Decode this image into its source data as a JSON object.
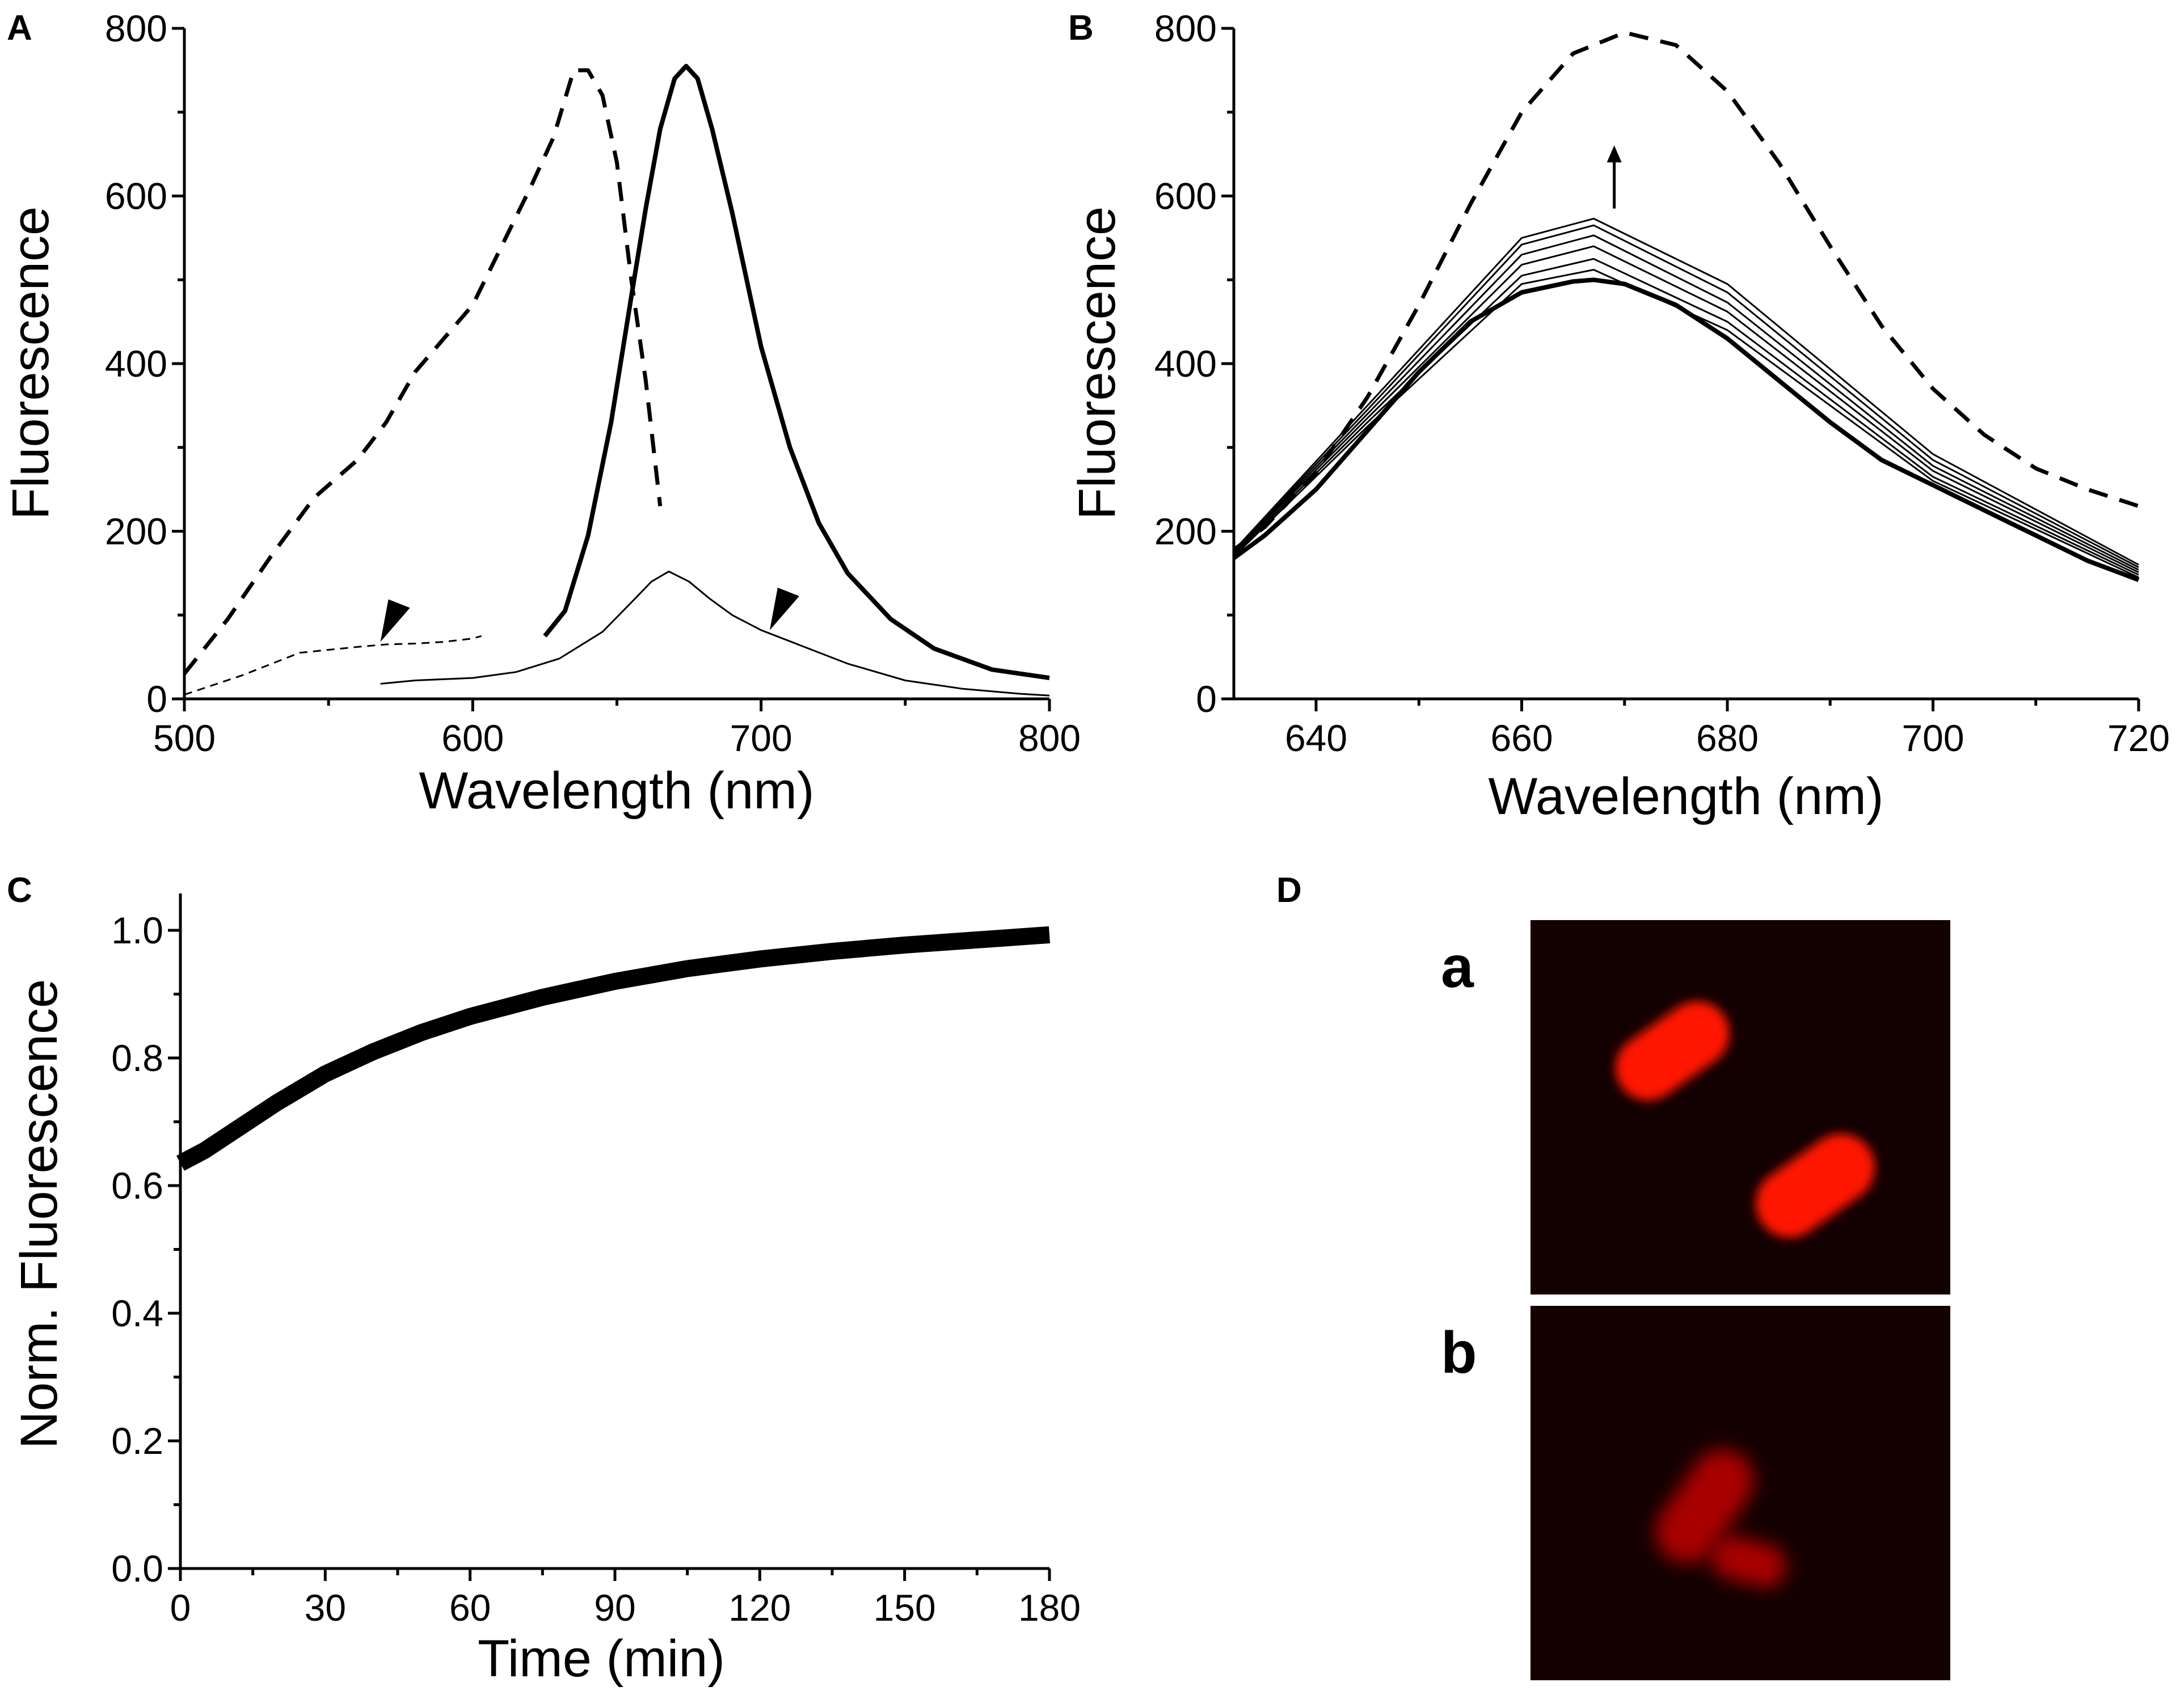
{
  "panels": {
    "A": "A",
    "B": "B",
    "C": "C",
    "D": "D"
  },
  "micrograph_labels": {
    "a": "a",
    "b": "b"
  },
  "chart_data": [
    {
      "panel": "A",
      "type": "line",
      "xlabel": "Wavelength (nm)",
      "ylabel": "Fluorescence",
      "xlim": [
        500,
        800
      ],
      "ylim": [
        0,
        800
      ],
      "x_ticks": [
        500,
        600,
        700,
        800
      ],
      "y_ticks": [
        0,
        200,
        400,
        600,
        800
      ],
      "grid": false,
      "series": [
        {
          "style": "thick dashed",
          "x": [
            500,
            515,
            530,
            545,
            560,
            570,
            580,
            590,
            600,
            610,
            620,
            628,
            635,
            640,
            645,
            650,
            655,
            660,
            665
          ],
          "y": [
            30,
            95,
            170,
            240,
            285,
            330,
            390,
            430,
            470,
            540,
            610,
            670,
            750,
            750,
            720,
            640,
            500,
            380,
            230
          ]
        },
        {
          "style": "thin dashed",
          "x": [
            500,
            520,
            540,
            560,
            570,
            580,
            590,
            600,
            603
          ],
          "y": [
            5,
            28,
            55,
            62,
            65,
            66,
            68,
            72,
            75
          ]
        },
        {
          "style": "thick solid",
          "x": [
            625,
            632,
            640,
            648,
            655,
            660,
            665,
            670,
            674,
            678,
            683,
            690,
            700,
            710,
            720,
            730,
            745,
            760,
            780,
            800
          ],
          "y": [
            75,
            105,
            195,
            330,
            480,
            585,
            680,
            740,
            755,
            740,
            680,
            580,
            420,
            300,
            210,
            150,
            95,
            60,
            35,
            25
          ]
        },
        {
          "style": "thin solid",
          "x": [
            568,
            580,
            600,
            615,
            630,
            645,
            655,
            662,
            668,
            675,
            682,
            690,
            700,
            715,
            730,
            750,
            770,
            790,
            800
          ],
          "y": [
            18,
            22,
            25,
            32,
            48,
            80,
            115,
            140,
            152,
            140,
            120,
            100,
            82,
            62,
            42,
            22,
            12,
            6,
            4
          ]
        }
      ],
      "annotations": [
        {
          "shape": "arrowhead",
          "x": 568,
          "y": 68
        },
        {
          "shape": "arrowhead",
          "x": 703,
          "y": 82
        }
      ]
    },
    {
      "panel": "B",
      "type": "line",
      "xlabel": "Wavelength (nm)",
      "ylabel": "Fluorescence",
      "xlim": [
        632,
        720
      ],
      "ylim": [
        0,
        800
      ],
      "x_ticks": [
        640,
        660,
        680,
        700,
        720
      ],
      "y_ticks": [
        0,
        200,
        400,
        600,
        800
      ],
      "grid": false,
      "series": [
        {
          "style": "thick dashed",
          "x": [
            632,
            635,
            640,
            645,
            650,
            655,
            660,
            665,
            670,
            675,
            680,
            685,
            690,
            695,
            700,
            705,
            710,
            715,
            720
          ],
          "y": [
            178,
            205,
            270,
            360,
            470,
            590,
            700,
            770,
            795,
            780,
            725,
            640,
            540,
            445,
            370,
            315,
            275,
            250,
            230
          ]
        },
        {
          "style": "thick solid",
          "x": [
            632,
            635,
            640,
            645,
            650,
            655,
            660,
            665,
            667,
            670,
            675,
            680,
            685,
            690,
            695,
            700,
            705,
            710,
            715,
            720
          ],
          "y": [
            168,
            195,
            250,
            320,
            390,
            450,
            485,
            498,
            500,
            495,
            470,
            430,
            380,
            330,
            285,
            255,
            225,
            195,
            165,
            142
          ]
        },
        {
          "style": "thin solid",
          "x": [
            632,
            645,
            660,
            667,
            680,
            700,
            720
          ],
          "y": [
            170,
            325,
            495,
            512,
            440,
            260,
            145
          ]
        },
        {
          "style": "thin solid",
          "x": [
            632,
            645,
            660,
            667,
            680,
            700,
            720
          ],
          "y": [
            172,
            330,
            505,
            525,
            450,
            265,
            148
          ]
        },
        {
          "style": "thin solid",
          "x": [
            632,
            645,
            660,
            667,
            680,
            700,
            720
          ],
          "y": [
            174,
            335,
            518,
            540,
            462,
            272,
            151
          ]
        },
        {
          "style": "thin solid",
          "x": [
            632,
            645,
            660,
            667,
            680,
            700,
            720
          ],
          "y": [
            175,
            340,
            530,
            553,
            473,
            278,
            154
          ]
        },
        {
          "style": "thin solid",
          "x": [
            632,
            645,
            660,
            667,
            680,
            700,
            720
          ],
          "y": [
            176,
            345,
            542,
            565,
            485,
            285,
            157
          ]
        },
        {
          "style": "thin solid",
          "x": [
            632,
            645,
            660,
            667,
            680,
            700,
            720
          ],
          "y": [
            177,
            350,
            550,
            573,
            495,
            292,
            160
          ]
        }
      ],
      "annotations": [
        {
          "shape": "arrow-up",
          "x": 669,
          "y_from": 585,
          "y_to": 655
        }
      ]
    },
    {
      "panel": "C",
      "type": "line",
      "xlabel": "Time (min)",
      "ylabel": "Norm. Fluorescence",
      "xlim": [
        0,
        180
      ],
      "ylim": [
        0,
        1.0
      ],
      "x_ticks": [
        0,
        30,
        60,
        90,
        120,
        150,
        180
      ],
      "y_ticks": [
        "0.0",
        "0.2",
        "0.4",
        "0.6",
        "0.8",
        "1.0"
      ],
      "grid": false,
      "series": [
        {
          "style": "very thick solid",
          "x": [
            0,
            5,
            10,
            15,
            20,
            30,
            40,
            50,
            60,
            75,
            90,
            105,
            120,
            135,
            150,
            165,
            180
          ],
          "y": [
            0.635,
            0.655,
            0.68,
            0.705,
            0.73,
            0.775,
            0.81,
            0.84,
            0.865,
            0.895,
            0.92,
            0.94,
            0.955,
            0.967,
            0.977,
            0.985,
            0.993
          ]
        }
      ]
    }
  ]
}
